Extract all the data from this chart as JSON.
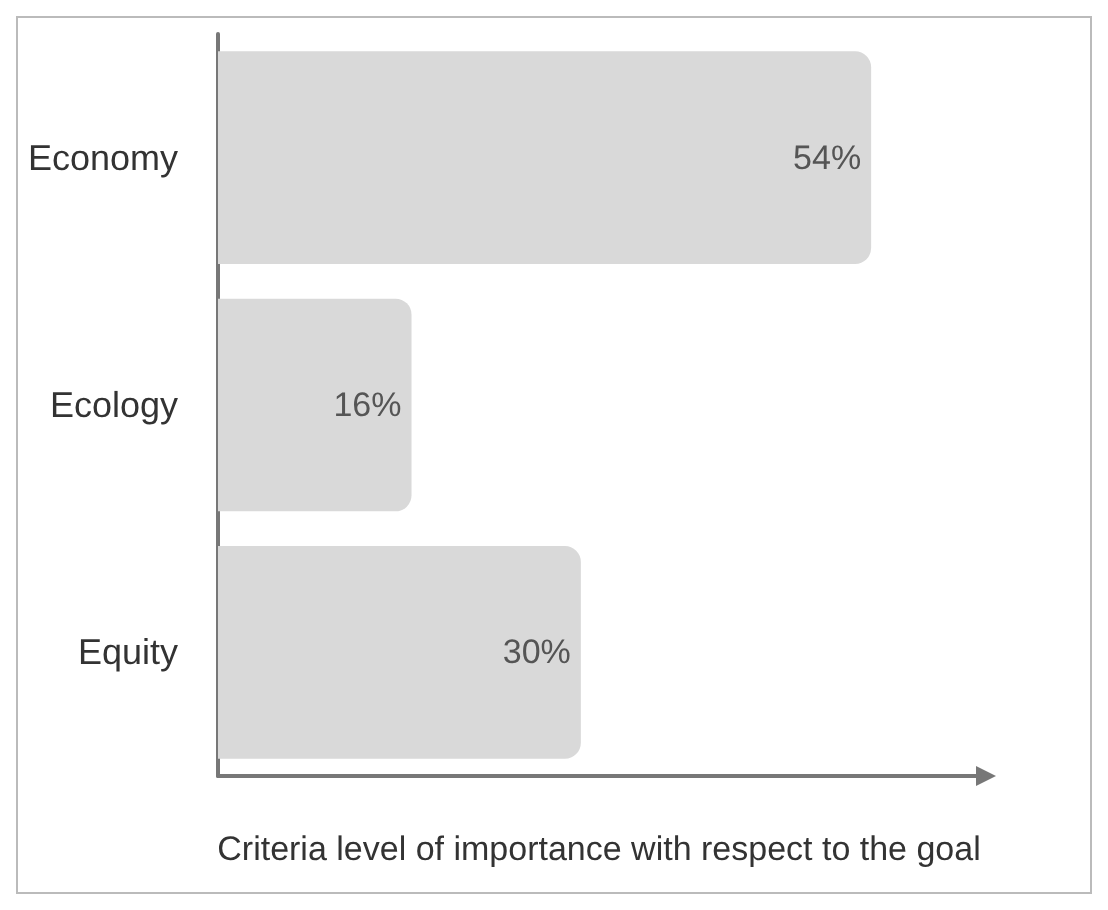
{
  "chart_data": {
    "type": "bar",
    "orientation": "horizontal",
    "xlabel": "Criteria level of importance with respect to the goal",
    "categories": [
      "Economy",
      "Ecology",
      "Equity"
    ],
    "values": [
      54,
      16,
      30
    ],
    "value_labels": [
      "54%",
      "16%",
      "30%"
    ],
    "color": "#d9d9d9",
    "xlim": [
      0,
      63
    ],
    "grid": false
  }
}
